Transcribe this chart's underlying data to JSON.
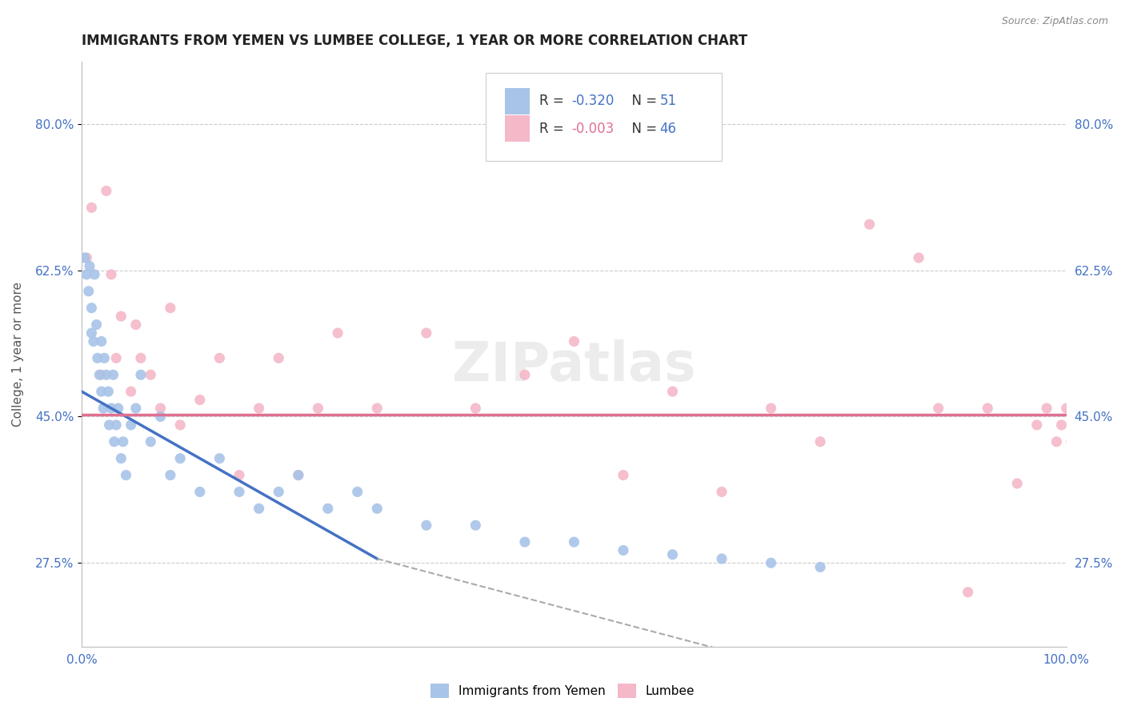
{
  "title": "IMMIGRANTS FROM YEMEN VS LUMBEE COLLEGE, 1 YEAR OR MORE CORRELATION CHART",
  "source_text": "Source: ZipAtlas.com",
  "ylabel": "College, 1 year or more",
  "xlim": [
    0,
    100
  ],
  "ylim": [
    17.5,
    87.5
  ],
  "yticks": [
    27.5,
    45.0,
    62.5,
    80.0
  ],
  "xtick_labels_show": [
    "0.0%",
    "100.0%"
  ],
  "ytick_labels": [
    "27.5%",
    "45.0%",
    "62.5%",
    "80.0%"
  ],
  "legend_r1": "-0.320",
  "legend_n1": "51",
  "legend_r2": "-0.003",
  "legend_n2": "46",
  "blue_color": "#a8c4e8",
  "pink_color": "#f4b8c8",
  "blue_line_color": "#4472c4",
  "pink_line_color": "#e07090",
  "dashed_line_color": "#aaaaaa",
  "watermark": "ZIPatlas",
  "blue_scatter_x": [
    0.3,
    0.5,
    0.7,
    0.8,
    1.0,
    1.0,
    1.2,
    1.3,
    1.5,
    1.6,
    1.8,
    2.0,
    2.0,
    2.2,
    2.3,
    2.5,
    2.7,
    2.8,
    3.0,
    3.2,
    3.3,
    3.5,
    3.7,
    4.0,
    4.2,
    4.5,
    5.0,
    5.5,
    6.0,
    7.0,
    8.0,
    9.0,
    10.0,
    12.0,
    14.0,
    16.0,
    18.0,
    20.0,
    22.0,
    25.0,
    28.0,
    30.0,
    35.0,
    40.0,
    45.0,
    50.0,
    55.0,
    60.0,
    65.0,
    70.0,
    75.0
  ],
  "blue_scatter_y": [
    64.0,
    62.0,
    60.0,
    63.0,
    58.0,
    55.0,
    54.0,
    62.0,
    56.0,
    52.0,
    50.0,
    48.0,
    54.0,
    46.0,
    52.0,
    50.0,
    48.0,
    44.0,
    46.0,
    50.0,
    42.0,
    44.0,
    46.0,
    40.0,
    42.0,
    38.0,
    44.0,
    46.0,
    50.0,
    42.0,
    45.0,
    38.0,
    40.0,
    36.0,
    40.0,
    36.0,
    34.0,
    36.0,
    38.0,
    34.0,
    36.0,
    34.0,
    32.0,
    32.0,
    30.0,
    30.0,
    29.0,
    28.5,
    28.0,
    27.5,
    27.0
  ],
  "pink_scatter_x": [
    0.5,
    1.0,
    2.0,
    2.5,
    3.0,
    3.5,
    4.0,
    5.0,
    5.5,
    6.0,
    7.0,
    8.0,
    9.0,
    10.0,
    12.0,
    14.0,
    16.0,
    18.0,
    20.0,
    22.0,
    24.0,
    26.0,
    30.0,
    35.0,
    40.0,
    45.0,
    50.0,
    55.0,
    60.0,
    65.0,
    70.0,
    75.0,
    80.0,
    85.0,
    87.0,
    90.0,
    92.0,
    95.0,
    97.0,
    98.0,
    99.0,
    99.5,
    100.0,
    100.5,
    101.0,
    101.5
  ],
  "pink_scatter_y": [
    64.0,
    70.0,
    50.0,
    72.0,
    62.0,
    52.0,
    57.0,
    48.0,
    56.0,
    52.0,
    50.0,
    46.0,
    58.0,
    44.0,
    47.0,
    52.0,
    38.0,
    46.0,
    52.0,
    38.0,
    46.0,
    55.0,
    46.0,
    55.0,
    46.0,
    50.0,
    54.0,
    38.0,
    48.0,
    36.0,
    46.0,
    42.0,
    68.0,
    64.0,
    46.0,
    24.0,
    46.0,
    37.0,
    44.0,
    46.0,
    42.0,
    44.0,
    46.0,
    42.0,
    40.0,
    38.0
  ],
  "blue_line_x_start": 0,
  "blue_line_x_solid_end": 30,
  "blue_line_x_dash_end": 75,
  "blue_line_y_start": 48.0,
  "blue_line_y_at_solid_end": 28.0,
  "blue_line_y_at_dash_end": 14.0,
  "pink_line_y": 45.2
}
